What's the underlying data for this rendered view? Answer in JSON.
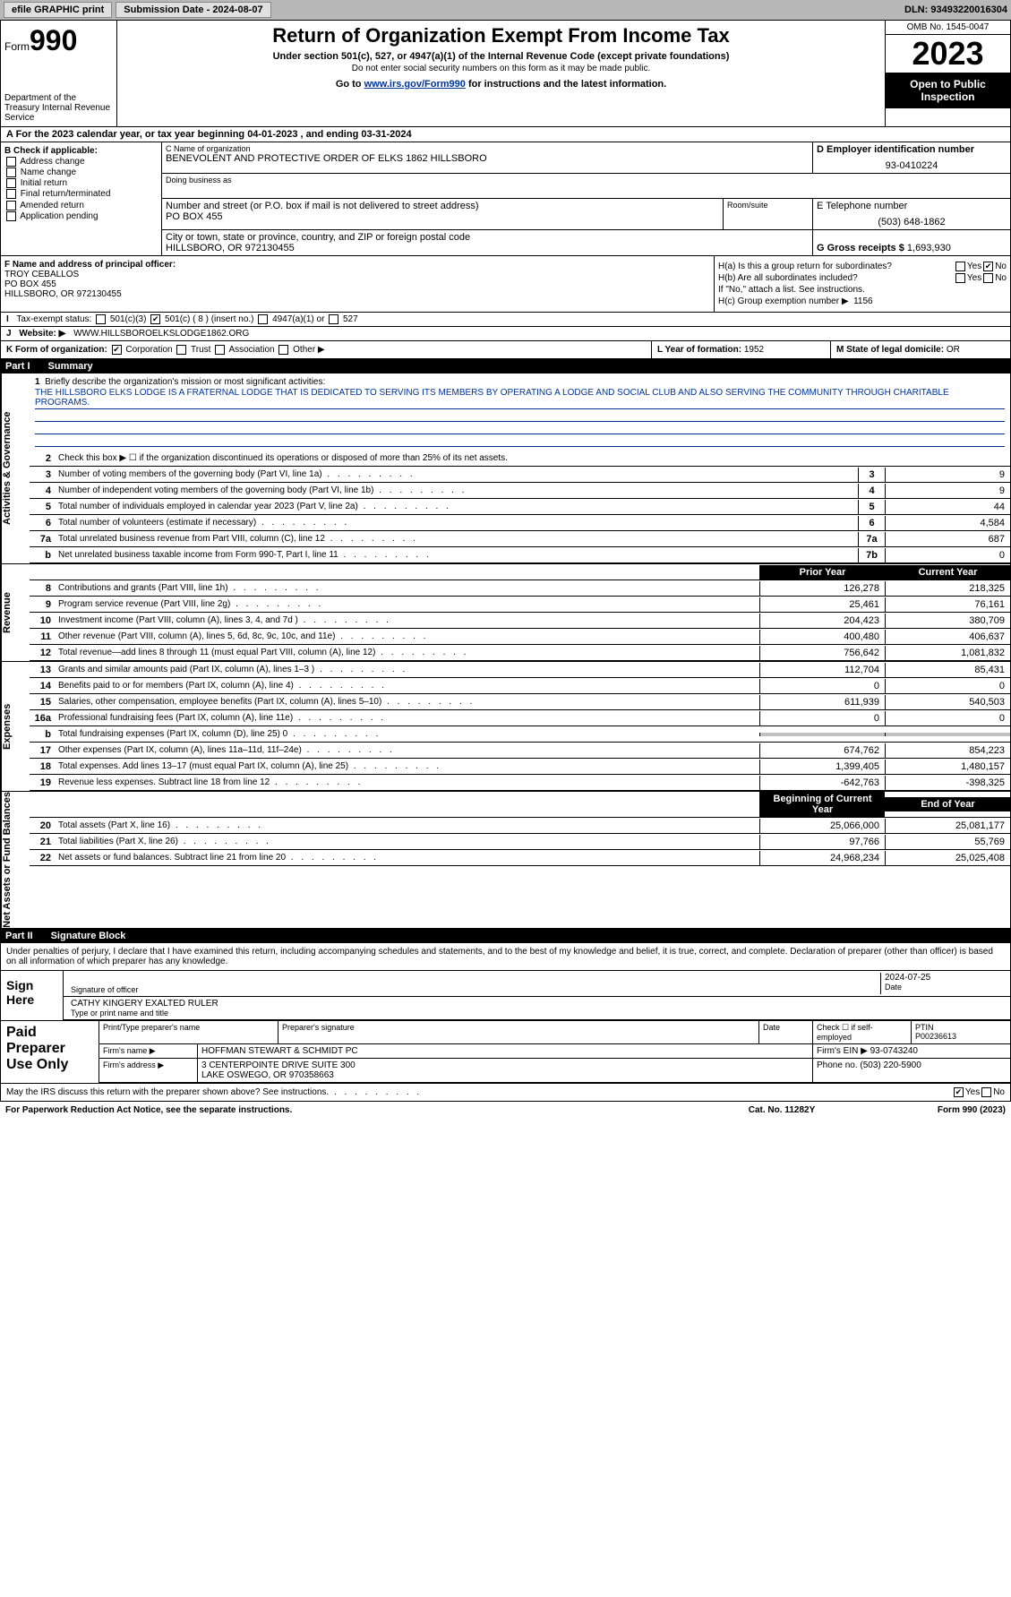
{
  "topbar": {
    "efile": "efile GRAPHIC print",
    "submission_label": "Submission Date - 2024-08-07",
    "dln": "DLN: 93493220016304"
  },
  "header": {
    "form_prefix": "Form",
    "form_no": "990",
    "dept": "Department of the Treasury Internal Revenue Service",
    "title": "Return of Organization Exempt From Income Tax",
    "sub": "Under section 501(c), 527, or 4947(a)(1) of the Internal Revenue Code (except private foundations)",
    "note": "Do not enter social security numbers on this form as it may be made public.",
    "goto_pre": "Go to ",
    "goto_link": "www.irs.gov/Form990",
    "goto_post": " for instructions and the latest information.",
    "omb": "OMB No. 1545-0047",
    "year": "2023",
    "open": "Open to Public Inspection"
  },
  "row_a": "A  For the 2023 calendar year, or tax year beginning 04-01-2023    , and ending 03-31-2024",
  "b": {
    "hdr": "B Check if applicable:",
    "opts": [
      "Address change",
      "Name change",
      "Initial return",
      "Final return/terminated",
      "Amended return",
      "Application pending"
    ]
  },
  "c": {
    "name_lbl": "C Name of organization",
    "name": "BENEVOLENT AND PROTECTIVE ORDER OF ELKS 1862 HILLSBORO",
    "dba_lbl": "Doing business as",
    "addr_lbl": "Number and street (or P.O. box if mail is not delivered to street address)",
    "addr": "PO BOX 455",
    "suite_lbl": "Room/suite",
    "city_lbl": "City or town, state or province, country, and ZIP or foreign postal code",
    "city": "HILLSBORO, OR  972130455"
  },
  "d": {
    "lbl": "D Employer identification number",
    "val": "93-0410224"
  },
  "e": {
    "lbl": "E Telephone number",
    "val": "(503) 648-1862"
  },
  "g": {
    "lbl": "G Gross receipts $",
    "val": "1,693,930"
  },
  "f": {
    "lbl": "F Name and address of principal officer:",
    "name": "TROY CEBALLOS",
    "addr1": "PO BOX 455",
    "addr2": "HILLSBORO, OR  972130455"
  },
  "h": {
    "a_lbl": "H(a)  Is this a group return for subordinates?",
    "b_lbl": "H(b)  Are all subordinates included?",
    "b_note": "If \"No,\" attach a list. See instructions.",
    "c_lbl": "H(c)  Group exemption number ▶",
    "c_val": "1156",
    "yes": "Yes",
    "no": "No"
  },
  "i": {
    "lbl": "Tax-exempt status:",
    "o1": "501(c)(3)",
    "o2": "501(c) ( 8 ) (insert no.)",
    "o3": "4947(a)(1) or",
    "o4": "527"
  },
  "j": {
    "lbl": "Website: ▶",
    "val": "WWW.HILLSBOROELKSLODGE1862.ORG"
  },
  "k": {
    "lbl": "K Form of organization:",
    "o1": "Corporation",
    "o2": "Trust",
    "o3": "Association",
    "o4": "Other ▶"
  },
  "l": {
    "lbl": "L Year of formation:",
    "val": "1952"
  },
  "m": {
    "lbl": "M State of legal domicile:",
    "val": "OR"
  },
  "part1": {
    "hdr": "Part I",
    "title": "Summary",
    "line1_lbl": "Briefly describe the organization's mission or most significant activities:",
    "mission": "THE HILLSBORO ELKS LODGE IS A FRATERNAL LODGE THAT IS DEDICATED TO SERVING ITS MEMBERS BY OPERATING A LODGE AND SOCIAL CLUB AND ALSO SERVING THE COMMUNITY THROUGH CHARITABLE PROGRAMS.",
    "line2": "Check this box ▶ ☐ if the organization discontinued its operations or disposed of more than 25% of its net assets.",
    "sides": [
      "Activities & Governance",
      "Revenue",
      "Expenses",
      "Net Assets or Fund Balances"
    ],
    "gov_rows": [
      {
        "n": "3",
        "d": "Number of voting members of the governing body (Part VI, line 1a)",
        "c": "3",
        "v": "9"
      },
      {
        "n": "4",
        "d": "Number of independent voting members of the governing body (Part VI, line 1b)",
        "c": "4",
        "v": "9"
      },
      {
        "n": "5",
        "d": "Total number of individuals employed in calendar year 2023 (Part V, line 2a)",
        "c": "5",
        "v": "44"
      },
      {
        "n": "6",
        "d": "Total number of volunteers (estimate if necessary)",
        "c": "6",
        "v": "4,584"
      },
      {
        "n": "7a",
        "d": "Total unrelated business revenue from Part VIII, column (C), line 12",
        "c": "7a",
        "v": "687"
      },
      {
        "n": "b",
        "d": "Net unrelated business taxable income from Form 990-T, Part I, line 11",
        "c": "7b",
        "v": "0"
      }
    ],
    "hdr_prior": "Prior Year",
    "hdr_curr": "Current Year",
    "rev_rows": [
      {
        "n": "8",
        "d": "Contributions and grants (Part VIII, line 1h)",
        "p": "126,278",
        "c": "218,325"
      },
      {
        "n": "9",
        "d": "Program service revenue (Part VIII, line 2g)",
        "p": "25,461",
        "c": "76,161"
      },
      {
        "n": "10",
        "d": "Investment income (Part VIII, column (A), lines 3, 4, and 7d )",
        "p": "204,423",
        "c": "380,709"
      },
      {
        "n": "11",
        "d": "Other revenue (Part VIII, column (A), lines 5, 6d, 8c, 9c, 10c, and 11e)",
        "p": "400,480",
        "c": "406,637"
      },
      {
        "n": "12",
        "d": "Total revenue—add lines 8 through 11 (must equal Part VIII, column (A), line 12)",
        "p": "756,642",
        "c": "1,081,832"
      }
    ],
    "exp_rows": [
      {
        "n": "13",
        "d": "Grants and similar amounts paid (Part IX, column (A), lines 1–3 )",
        "p": "112,704",
        "c": "85,431"
      },
      {
        "n": "14",
        "d": "Benefits paid to or for members (Part IX, column (A), line 4)",
        "p": "0",
        "c": "0"
      },
      {
        "n": "15",
        "d": "Salaries, other compensation, employee benefits (Part IX, column (A), lines 5–10)",
        "p": "611,939",
        "c": "540,503"
      },
      {
        "n": "16a",
        "d": "Professional fundraising fees (Part IX, column (A), line 11e)",
        "p": "0",
        "c": "0"
      },
      {
        "n": "b",
        "d": "Total fundraising expenses (Part IX, column (D), line 25) 0",
        "p": "",
        "c": "",
        "shaded": true
      },
      {
        "n": "17",
        "d": "Other expenses (Part IX, column (A), lines 11a–11d, 11f–24e)",
        "p": "674,762",
        "c": "854,223"
      },
      {
        "n": "18",
        "d": "Total expenses. Add lines 13–17 (must equal Part IX, column (A), line 25)",
        "p": "1,399,405",
        "c": "1,480,157"
      },
      {
        "n": "19",
        "d": "Revenue less expenses. Subtract line 18 from line 12",
        "p": "-642,763",
        "c": "-398,325"
      }
    ],
    "hdr_beg": "Beginning of Current Year",
    "hdr_end": "End of Year",
    "na_rows": [
      {
        "n": "20",
        "d": "Total assets (Part X, line 16)",
        "p": "25,066,000",
        "c": "25,081,177"
      },
      {
        "n": "21",
        "d": "Total liabilities (Part X, line 26)",
        "p": "97,766",
        "c": "55,769"
      },
      {
        "n": "22",
        "d": "Net assets or fund balances. Subtract line 21 from line 20",
        "p": "24,968,234",
        "c": "25,025,408"
      }
    ]
  },
  "part2": {
    "hdr": "Part II",
    "title": "Signature Block",
    "penalty": "Under penalties of perjury, I declare that I have examined this return, including accompanying schedules and statements, and to the best of my knowledge and belief, it is true, correct, and complete. Declaration of preparer (other than officer) is based on all information of which preparer has any knowledge.",
    "sign_here": "Sign Here",
    "sig_officer_lbl": "Signature of officer",
    "sig_date": "2024-07-25",
    "date_lbl": "Date",
    "officer_name": "CATHY KINGERY EXALTED RULER",
    "officer_title_lbl": "Type or print name and title",
    "paid": "Paid Preparer Use Only",
    "prep_name_lbl": "Print/Type preparer's name",
    "prep_sig_lbl": "Preparer's signature",
    "prep_date_lbl": "Date",
    "prep_self_lbl": "Check ☐ if self-employed",
    "ptin_lbl": "PTIN",
    "ptin": "P00236613",
    "firm_name_lbl": "Firm's name    ▶",
    "firm_name": "HOFFMAN STEWART & SCHMIDT PC",
    "firm_ein_lbl": "Firm's EIN ▶",
    "firm_ein": "93-0743240",
    "firm_addr_lbl": "Firm's address ▶",
    "firm_addr1": "3 CENTERPOINTE DRIVE SUITE 300",
    "firm_addr2": "LAKE OSWEGO, OR  970358663",
    "firm_phone_lbl": "Phone no.",
    "firm_phone": "(503) 220-5900",
    "discuss": "May the IRS discuss this return with the preparer shown above? See instructions.",
    "yes": "Yes",
    "no": "No"
  },
  "footer": {
    "paperwork": "For Paperwork Reduction Act Notice, see the separate instructions.",
    "cat": "Cat. No. 11282Y",
    "form": "Form 990 (2023)"
  }
}
